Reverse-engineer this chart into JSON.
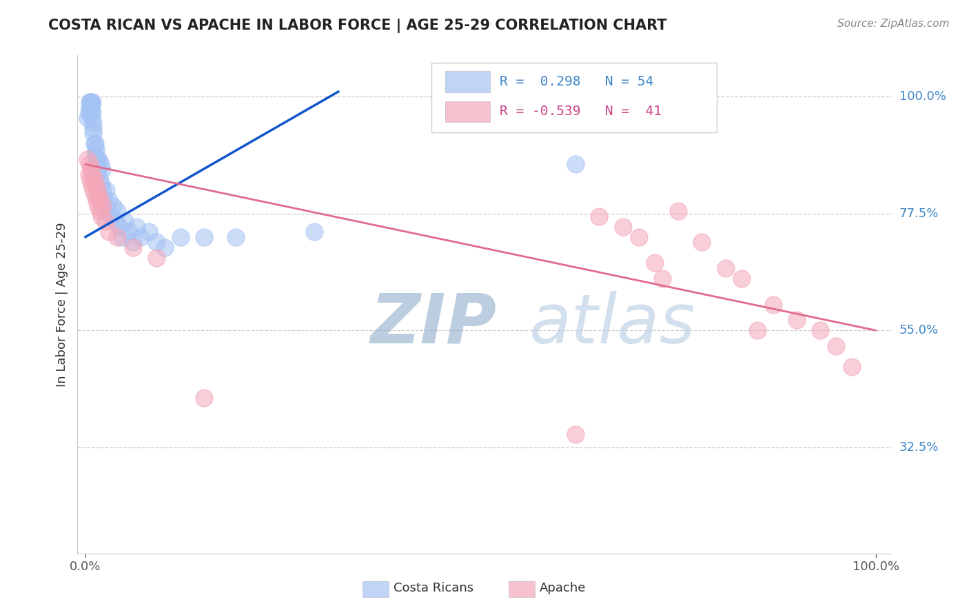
{
  "title": "COSTA RICAN VS APACHE IN LABOR FORCE | AGE 25-29 CORRELATION CHART",
  "source": "Source: ZipAtlas.com",
  "ylabel": "In Labor Force | Age 25-29",
  "ytick_labels": [
    "100.0%",
    "77.5%",
    "55.0%",
    "32.5%"
  ],
  "ytick_values": [
    1.0,
    0.775,
    0.55,
    0.325
  ],
  "xlim": [
    -0.01,
    1.02
  ],
  "ylim": [
    0.12,
    1.08
  ],
  "blue_color": "#a4c2f4",
  "pink_color": "#f4a7b9",
  "blue_line_color": "#1155cc",
  "pink_line_color": "#e06b8b",
  "watermark_zip_color": "#b0c4d8",
  "watermark_atlas_color": "#c8d8ee",
  "background_color": "#ffffff",
  "blue_scatter_x": [
    0.003,
    0.004,
    0.005,
    0.005,
    0.006,
    0.006,
    0.007,
    0.007,
    0.007,
    0.008,
    0.008,
    0.009,
    0.009,
    0.01,
    0.01,
    0.01,
    0.011,
    0.012,
    0.012,
    0.013,
    0.013,
    0.014,
    0.015,
    0.015,
    0.016,
    0.017,
    0.018,
    0.019,
    0.02,
    0.021,
    0.022,
    0.024,
    0.026,
    0.028,
    0.03,
    0.032,
    0.035,
    0.038,
    0.04,
    0.043,
    0.046,
    0.05,
    0.055,
    0.06,
    0.065,
    0.07,
    0.08,
    0.09,
    0.1,
    0.12,
    0.15,
    0.19,
    0.29,
    0.62
  ],
  "blue_scatter_y": [
    0.96,
    0.97,
    0.98,
    0.99,
    0.97,
    0.99,
    0.975,
    0.98,
    0.99,
    0.96,
    0.985,
    0.97,
    0.99,
    0.93,
    0.94,
    0.95,
    0.91,
    0.89,
    0.91,
    0.88,
    0.9,
    0.87,
    0.85,
    0.88,
    0.86,
    0.88,
    0.84,
    0.87,
    0.83,
    0.86,
    0.82,
    0.8,
    0.82,
    0.78,
    0.8,
    0.77,
    0.79,
    0.76,
    0.78,
    0.75,
    0.73,
    0.76,
    0.74,
    0.72,
    0.75,
    0.73,
    0.74,
    0.72,
    0.71,
    0.73,
    0.73,
    0.73,
    0.74,
    0.87
  ],
  "pink_scatter_x": [
    0.003,
    0.004,
    0.005,
    0.006,
    0.007,
    0.008,
    0.009,
    0.01,
    0.011,
    0.012,
    0.013,
    0.014,
    0.015,
    0.016,
    0.017,
    0.018,
    0.019,
    0.02,
    0.022,
    0.025,
    0.03,
    0.04,
    0.06,
    0.09,
    0.15,
    0.62,
    0.65,
    0.68,
    0.7,
    0.72,
    0.73,
    0.75,
    0.78,
    0.81,
    0.83,
    0.85,
    0.87,
    0.9,
    0.93,
    0.95,
    0.97
  ],
  "pink_scatter_y": [
    0.88,
    0.85,
    0.87,
    0.84,
    0.86,
    0.83,
    0.85,
    0.82,
    0.84,
    0.81,
    0.83,
    0.8,
    0.82,
    0.79,
    0.81,
    0.78,
    0.8,
    0.77,
    0.79,
    0.76,
    0.74,
    0.73,
    0.71,
    0.69,
    0.42,
    0.35,
    0.77,
    0.75,
    0.73,
    0.68,
    0.65,
    0.78,
    0.72,
    0.67,
    0.65,
    0.55,
    0.6,
    0.57,
    0.55,
    0.52,
    0.48
  ],
  "blue_line_x": [
    0.0,
    0.32
  ],
  "blue_line_y": [
    0.73,
    1.01
  ],
  "pink_line_x": [
    0.0,
    1.0
  ],
  "pink_line_y": [
    0.87,
    0.55
  ]
}
